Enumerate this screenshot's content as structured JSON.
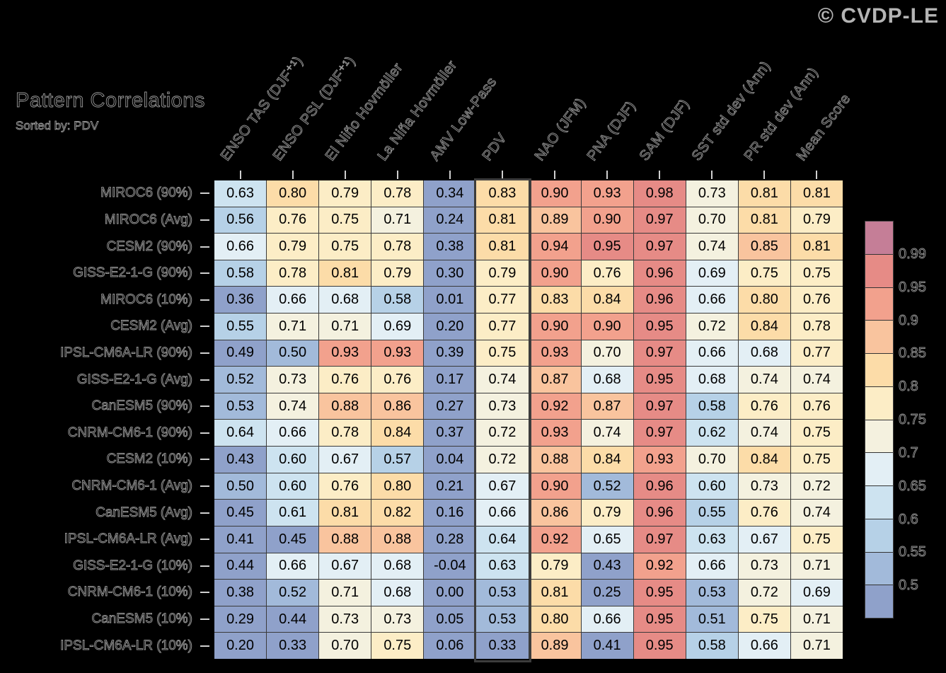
{
  "meta": {
    "copyright": "© CVDP-LE"
  },
  "header": {
    "title": "Pattern Correlations",
    "subtitle": "Sorted by: PDV"
  },
  "chart_data": {
    "type": "heatmap",
    "title": "Pattern Correlations",
    "subtitle": "Sorted by: PDV",
    "sorted_by": "PDV",
    "columns": [
      "ENSO TAS (DJF⁺¹)",
      "ENSO PSL (DJF⁺¹)",
      "El Niño Hovmöller",
      "La Niña Hovmöller",
      "AMV Low-Pass",
      "PDV",
      "NAO (JFM)",
      "PNA (DJF)",
      "SAM (DJF)",
      "SST std dev (Ann)",
      "PR std dev (Ann)",
      "Mean Score"
    ],
    "highlighted_column": "PDV",
    "highlighted_column_index": 5,
    "rows": [
      "MIROC6 (90%)",
      "MIROC6 (Avg)",
      "CESM2 (90%)",
      "GISS-E2-1-G (90%)",
      "MIROC6 (10%)",
      "CESM2 (Avg)",
      "IPSL-CM6A-LR (90%)",
      "GISS-E2-1-G (Avg)",
      "CanESM5 (90%)",
      "CNRM-CM6-1 (90%)",
      "CESM2 (10%)",
      "CNRM-CM6-1 (Avg)",
      "CanESM5 (Avg)",
      "IPSL-CM6A-LR (Avg)",
      "GISS-E2-1-G (10%)",
      "CNRM-CM6-1 (10%)",
      "CanESM5 (10%)",
      "IPSL-CM6A-LR (10%)"
    ],
    "values": [
      [
        0.63,
        0.8,
        0.79,
        0.78,
        0.34,
        0.83,
        0.9,
        0.93,
        0.98,
        0.73,
        0.81,
        0.81
      ],
      [
        0.56,
        0.76,
        0.75,
        0.71,
        0.24,
        0.81,
        0.89,
        0.9,
        0.97,
        0.7,
        0.81,
        0.79
      ],
      [
        0.66,
        0.79,
        0.75,
        0.78,
        0.38,
        0.81,
        0.94,
        0.95,
        0.97,
        0.74,
        0.85,
        0.81
      ],
      [
        0.58,
        0.78,
        0.81,
        0.79,
        0.3,
        0.79,
        0.9,
        0.76,
        0.96,
        0.69,
        0.75,
        0.75
      ],
      [
        0.36,
        0.66,
        0.68,
        0.58,
        0.01,
        0.77,
        0.83,
        0.84,
        0.96,
        0.66,
        0.8,
        0.76
      ],
      [
        0.55,
        0.71,
        0.71,
        0.69,
        0.2,
        0.77,
        0.9,
        0.9,
        0.95,
        0.72,
        0.84,
        0.78
      ],
      [
        0.49,
        0.5,
        0.93,
        0.93,
        0.39,
        0.75,
        0.93,
        0.7,
        0.97,
        0.66,
        0.68,
        0.77
      ],
      [
        0.52,
        0.73,
        0.76,
        0.76,
        0.17,
        0.74,
        0.87,
        0.68,
        0.95,
        0.68,
        0.74,
        0.74
      ],
      [
        0.53,
        0.74,
        0.88,
        0.86,
        0.27,
        0.73,
        0.92,
        0.87,
        0.97,
        0.58,
        0.76,
        0.76
      ],
      [
        0.64,
        0.66,
        0.78,
        0.84,
        0.37,
        0.72,
        0.93,
        0.74,
        0.97,
        0.62,
        0.74,
        0.75
      ],
      [
        0.43,
        0.6,
        0.67,
        0.57,
        0.04,
        0.72,
        0.88,
        0.84,
        0.93,
        0.7,
        0.84,
        0.75
      ],
      [
        0.5,
        0.6,
        0.76,
        0.8,
        0.21,
        0.67,
        0.9,
        0.52,
        0.96,
        0.6,
        0.73,
        0.72
      ],
      [
        0.45,
        0.61,
        0.81,
        0.82,
        0.16,
        0.66,
        0.86,
        0.79,
        0.96,
        0.55,
        0.76,
        0.74
      ],
      [
        0.41,
        0.45,
        0.88,
        0.88,
        0.28,
        0.64,
        0.92,
        0.65,
        0.97,
        0.63,
        0.67,
        0.75
      ],
      [
        0.44,
        0.66,
        0.67,
        0.68,
        -0.04,
        0.63,
        0.79,
        0.43,
        0.92,
        0.66,
        0.73,
        0.71
      ],
      [
        0.38,
        0.52,
        0.71,
        0.68,
        0.0,
        0.53,
        0.81,
        0.25,
        0.95,
        0.53,
        0.72,
        0.69
      ],
      [
        0.29,
        0.44,
        0.73,
        0.73,
        0.05,
        0.53,
        0.8,
        0.66,
        0.95,
        0.51,
        0.75,
        0.71
      ],
      [
        0.2,
        0.33,
        0.7,
        0.75,
        0.06,
        0.33,
        0.89,
        0.41,
        0.95,
        0.58,
        0.66,
        0.71
      ]
    ],
    "colorbar": {
      "levels": [
        0.5,
        0.55,
        0.6,
        0.65,
        0.7,
        0.75,
        0.8,
        0.85,
        0.9,
        0.95,
        0.99
      ],
      "colors": [
        "#8fa1ca",
        "#a2bada",
        "#b6d1e7",
        "#cde3f0",
        "#e3eff5",
        "#f4f1df",
        "#fcedc6",
        "#fcdca8",
        "#f9c49e",
        "#f2a18d",
        "#e68b86",
        "#c57e97"
      ],
      "labels_top_to_bottom": [
        "0.99",
        "0.95",
        "0.9",
        "0.85",
        "0.8",
        "0.75",
        "0.7",
        "0.65",
        "0.6",
        "0.55",
        "0.5"
      ],
      "legend_position": "right"
    },
    "grid": false,
    "cell_text_color": "#000000",
    "background_color": "#000000"
  }
}
